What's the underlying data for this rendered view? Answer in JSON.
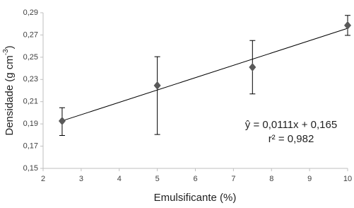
{
  "chart_data": {
    "type": "scatter",
    "x_label": "Emulsificante (%)",
    "y_label": {
      "text": "Densidade (g cm",
      "sup": "-3",
      "end": ")"
    },
    "annotations": [
      "ŷ  = 0,0111x + 0,165",
      "r² = 0,982"
    ],
    "series": [
      {
        "color": "#595959",
        "x": [
          2.5,
          5,
          7.5,
          10
        ],
        "values": [
          0.1926,
          0.2245,
          0.241,
          0.2786
        ],
        "error_high": [
          0.012,
          0.026,
          0.024,
          0.009
        ],
        "error_low": [
          0.013,
          0.044,
          0.024,
          0.009
        ]
      }
    ],
    "trendline": {
      "x": [
        2.5,
        10
      ],
      "values": [
        0.19275,
        0.276
      ],
      "color": "#000000"
    },
    "xlim": [
      2,
      10
    ],
    "xticks": [
      2,
      3,
      4,
      5,
      6,
      7,
      8,
      9,
      10
    ],
    "ylim": [
      0.15,
      0.29
    ],
    "yticks": [
      {
        "value": 0.15,
        "label": "0,15"
      },
      {
        "value": 0.17,
        "label": "0,17"
      },
      {
        "value": 0.19,
        "label": "0,19"
      },
      {
        "value": 0.21,
        "label": "0,21"
      },
      {
        "value": 0.23,
        "label": "0,23"
      },
      {
        "value": 0.25,
        "label": "0,25"
      },
      {
        "value": 0.27,
        "label": "0,27"
      },
      {
        "value": 0.29,
        "label": "0,29"
      }
    ],
    "grid": false
  }
}
